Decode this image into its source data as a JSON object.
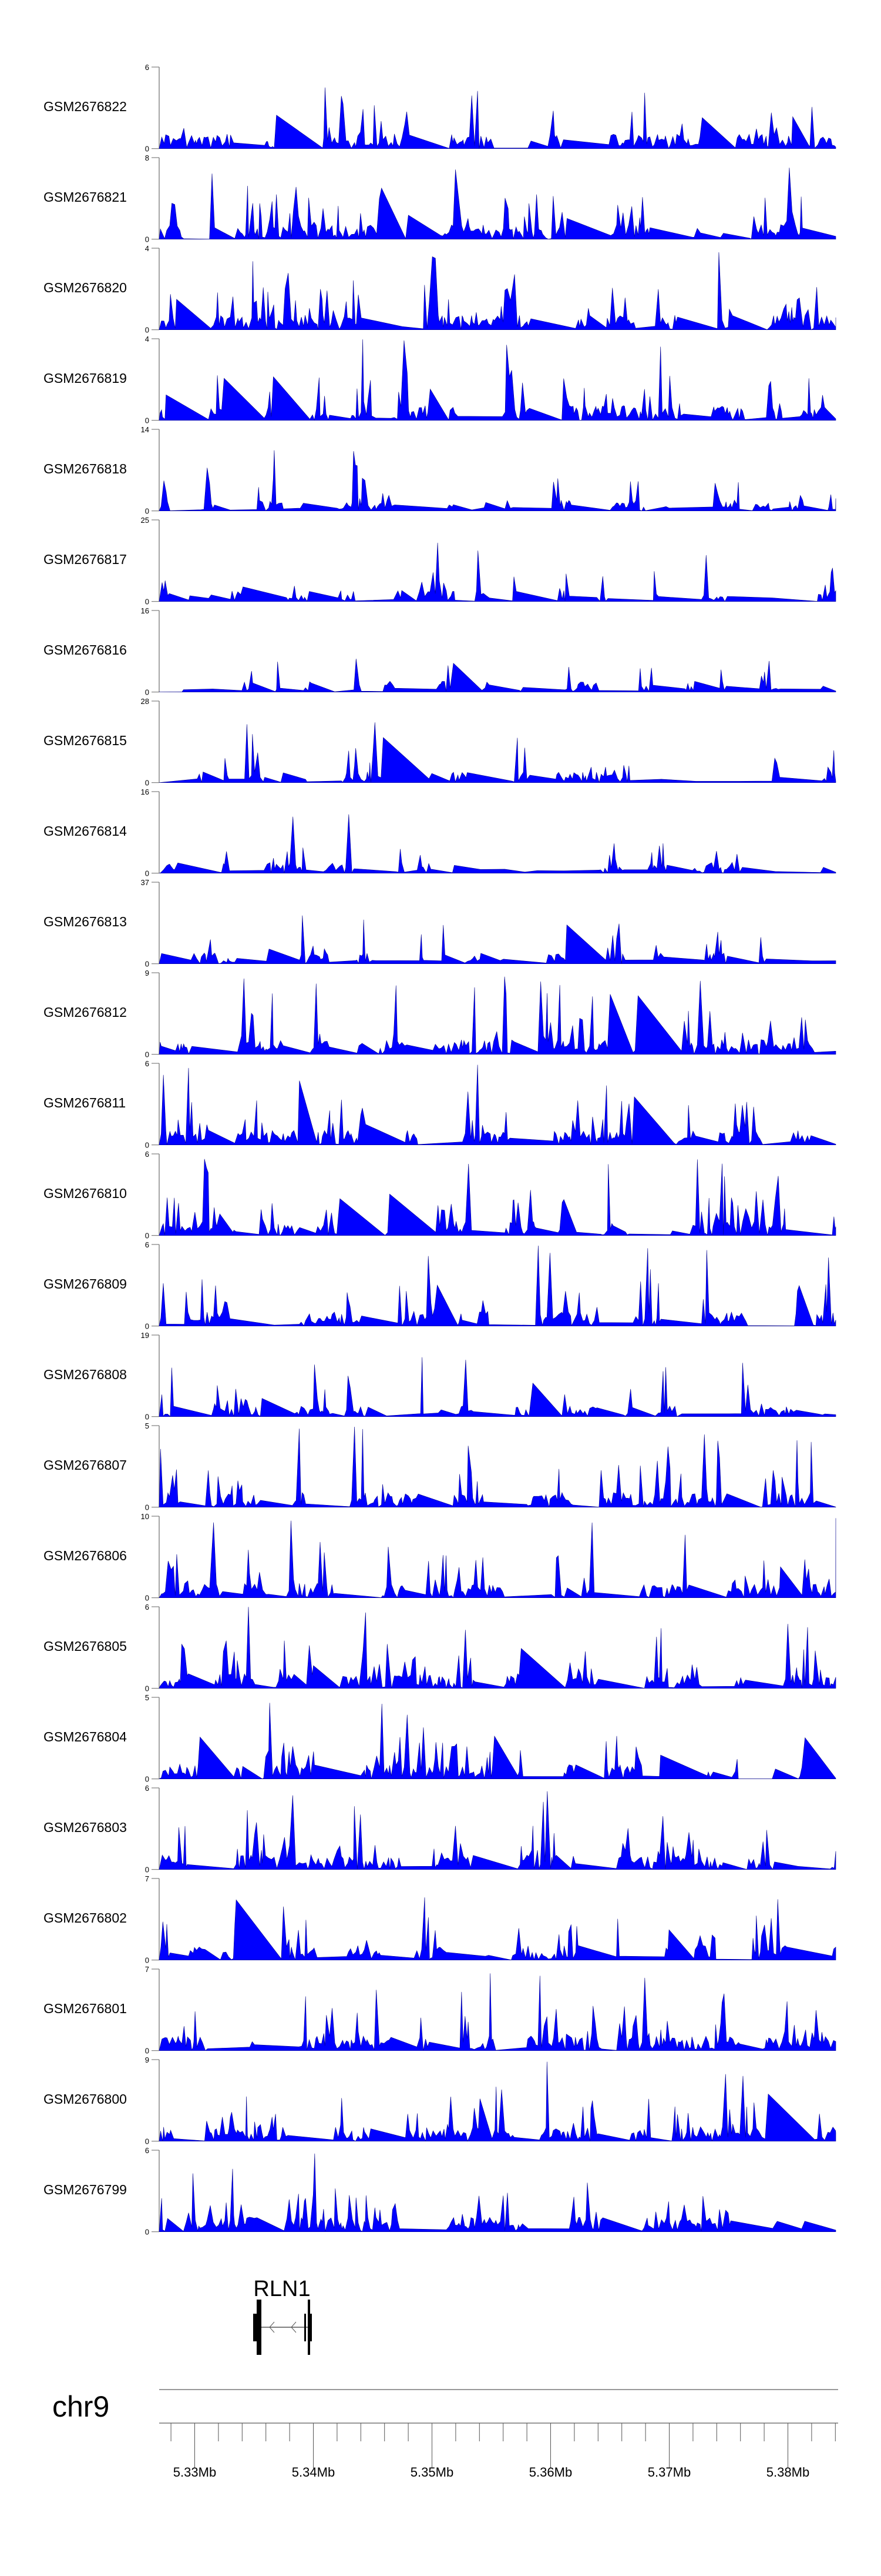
{
  "chart_data": {
    "type": "area",
    "title": "",
    "chromosome": "chr9",
    "xlim_mb": [
      5.327,
      5.3842
    ],
    "x_ticks": [
      "5.33Mb",
      "5.34Mb",
      "5.35Mb",
      "5.36Mb",
      "5.37Mb",
      "5.38Mb"
    ],
    "x_tick_values_mb": [
      5.33,
      5.34,
      5.35,
      5.36,
      5.37,
      5.38
    ],
    "fill_color": "#0000ff",
    "tracks": [
      {
        "name": "GSM2676822",
        "ylim": [
          0,
          6
        ]
      },
      {
        "name": "GSM2676821",
        "ylim": [
          0,
          8
        ]
      },
      {
        "name": "GSM2676820",
        "ylim": [
          0,
          4
        ]
      },
      {
        "name": "GSM2676819",
        "ylim": [
          0,
          4
        ]
      },
      {
        "name": "GSM2676818",
        "ylim": [
          0,
          14
        ]
      },
      {
        "name": "GSM2676817",
        "ylim": [
          0,
          25
        ]
      },
      {
        "name": "GSM2676816",
        "ylim": [
          0,
          16
        ]
      },
      {
        "name": "GSM2676815",
        "ylim": [
          0,
          28
        ]
      },
      {
        "name": "GSM2676814",
        "ylim": [
          0,
          16
        ]
      },
      {
        "name": "GSM2676813",
        "ylim": [
          0,
          37
        ]
      },
      {
        "name": "GSM2676812",
        "ylim": [
          0,
          9
        ]
      },
      {
        "name": "GSM2676811",
        "ylim": [
          0,
          6
        ]
      },
      {
        "name": "GSM2676810",
        "ylim": [
          0,
          6
        ]
      },
      {
        "name": "GSM2676809",
        "ylim": [
          0,
          6
        ]
      },
      {
        "name": "GSM2676808",
        "ylim": [
          0,
          19
        ]
      },
      {
        "name": "GSM2676807",
        "ylim": [
          0,
          5
        ]
      },
      {
        "name": "GSM2676806",
        "ylim": [
          0,
          10
        ]
      },
      {
        "name": "GSM2676805",
        "ylim": [
          0,
          6
        ]
      },
      {
        "name": "GSM2676804",
        "ylim": [
          0,
          5
        ]
      },
      {
        "name": "GSM2676803",
        "ylim": [
          0,
          6
        ]
      },
      {
        "name": "GSM2676802",
        "ylim": [
          0,
          7
        ]
      },
      {
        "name": "GSM2676801",
        "ylim": [
          0,
          7
        ]
      },
      {
        "name": "GSM2676800",
        "ylim": [
          0,
          9
        ]
      },
      {
        "name": "GSM2676799",
        "ylim": [
          0,
          6
        ]
      }
    ],
    "gene": {
      "name": "RLN1",
      "strand": "-",
      "start_mb": 5.335,
      "end_mb": 5.3393
    }
  }
}
